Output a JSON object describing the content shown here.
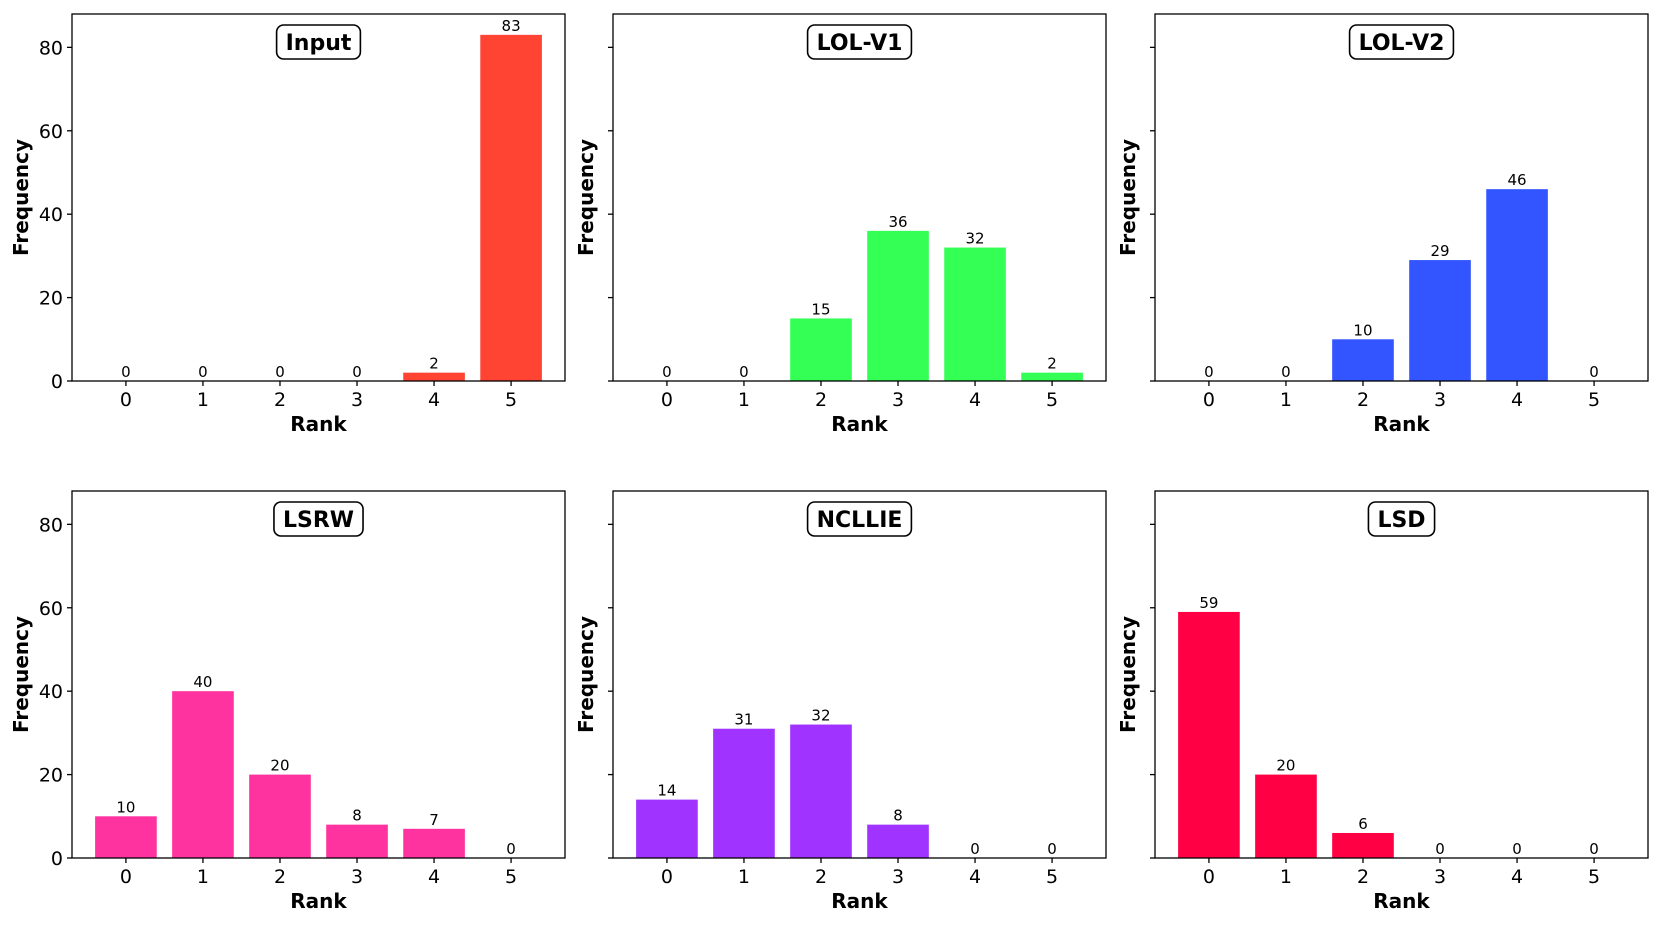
{
  "chart_data": [
    {
      "type": "bar",
      "title": "Input",
      "xlabel": "Rank",
      "ylabel": "Frequency",
      "categories": [
        "0",
        "1",
        "2",
        "3",
        "4",
        "5"
      ],
      "values": [
        0,
        0,
        0,
        0,
        2,
        83
      ],
      "ylim": [
        0,
        88
      ],
      "yticks": [
        0,
        20,
        40,
        60,
        80
      ],
      "show_ytick_labels": true,
      "color": "#ff4433"
    },
    {
      "type": "bar",
      "title": "LOL-V1",
      "xlabel": "Rank",
      "ylabel": "Frequency",
      "categories": [
        "0",
        "1",
        "2",
        "3",
        "4",
        "5"
      ],
      "values": [
        0,
        0,
        15,
        36,
        32,
        2
      ],
      "ylim": [
        0,
        88
      ],
      "yticks": [
        0,
        20,
        40,
        60,
        80
      ],
      "show_ytick_labels": false,
      "color": "#33ff55"
    },
    {
      "type": "bar",
      "title": "LOL-V2",
      "xlabel": "Rank",
      "ylabel": "Frequency",
      "categories": [
        "0",
        "1",
        "2",
        "3",
        "4",
        "5"
      ],
      "values": [
        0,
        0,
        10,
        29,
        46,
        0
      ],
      "ylim": [
        0,
        88
      ],
      "yticks": [
        0,
        20,
        40,
        60,
        80
      ],
      "show_ytick_labels": false,
      "color": "#3355ff"
    },
    {
      "type": "bar",
      "title": "LSRW",
      "xlabel": "Rank",
      "ylabel": "Frequency",
      "categories": [
        "0",
        "1",
        "2",
        "3",
        "4",
        "5"
      ],
      "values": [
        10,
        40,
        20,
        8,
        7,
        0
      ],
      "ylim": [
        0,
        88
      ],
      "yticks": [
        0,
        20,
        40,
        60,
        80
      ],
      "show_ytick_labels": true,
      "color": "#ff33a0"
    },
    {
      "type": "bar",
      "title": "NCLLIE",
      "xlabel": "Rank",
      "ylabel": "Frequency",
      "categories": [
        "0",
        "1",
        "2",
        "3",
        "4",
        "5"
      ],
      "values": [
        14,
        31,
        32,
        8,
        0,
        0
      ],
      "ylim": [
        0,
        88
      ],
      "yticks": [
        0,
        20,
        40,
        60,
        80
      ],
      "show_ytick_labels": false,
      "color": "#a033ff"
    },
    {
      "type": "bar",
      "title": "LSD",
      "xlabel": "Rank",
      "ylabel": "Frequency",
      "categories": [
        "0",
        "1",
        "2",
        "3",
        "4",
        "5"
      ],
      "values": [
        59,
        20,
        6,
        0,
        0,
        0
      ],
      "ylim": [
        0,
        88
      ],
      "yticks": [
        0,
        20,
        40,
        60,
        80
      ],
      "show_ytick_labels": false,
      "color": "#ff0044"
    }
  ]
}
